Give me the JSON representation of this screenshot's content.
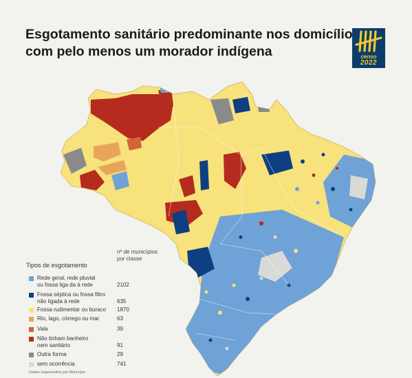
{
  "title": {
    "line1": "Esgotamento sanitário predominante nos domicílios",
    "line2": "com pelo menos um morador indígena"
  },
  "logo": {
    "text1": "censo",
    "text2": "2022",
    "bg_color": "#0a3d6b",
    "fg_color": "#f3c92e"
  },
  "legend": {
    "title": "Tipos de esgotamento",
    "count_header_line1": "nº de municípios",
    "count_header_line2": "por classe",
    "items": [
      {
        "label_line1": "Rede geral, rede pluvial",
        "label_line2": "ou fossa liga da à rede",
        "count": "2102",
        "color": "#6fa2d6"
      },
      {
        "label_line1": "Fossa séptica ou fossa filtro",
        "label_line2": "não ligada à rede",
        "count": "635",
        "color": "#0d3f82"
      },
      {
        "label_line1": "Fossa rudimentar ou buraco",
        "label_line2": "",
        "count": "1870",
        "color": "#f7e27c"
      },
      {
        "label_line1": "Rio, lago,  córrego ou mar",
        "label_line2": "",
        "count": "63",
        "color": "#e8a55a"
      },
      {
        "label_line1": "Vala",
        "label_line2": "",
        "count": "39",
        "color": "#d2643a"
      },
      {
        "label_line1": "Não tinham banheiro",
        "label_line2": "nem sanitário",
        "count": "91",
        "color": "#b52b1d"
      },
      {
        "label_line1": "Outra forma",
        "label_line2": "",
        "count": "29",
        "color": "#8a8a8a"
      },
      {
        "label_line1": "sem ocorrência",
        "label_line2": "",
        "count": "741",
        "color": "#d9d9d6"
      }
    ]
  },
  "footnote": "Dados organizados por Município"
}
